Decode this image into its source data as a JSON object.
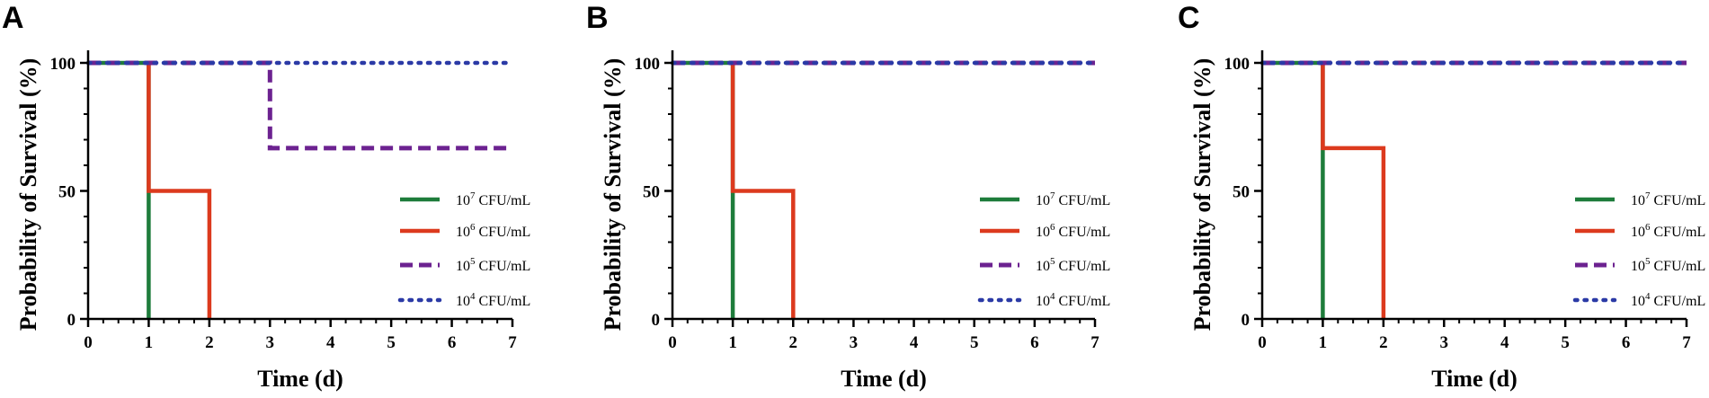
{
  "chart_data": [
    {
      "panel": "A",
      "type": "line",
      "step": true,
      "xlabel": "Time (d)",
      "ylabel": "Probability of Survival (%)",
      "xlim": [
        0,
        7
      ],
      "ylim": [
        0,
        100
      ],
      "xticks": [
        "0",
        "1",
        "2",
        "3",
        "4",
        "5",
        "6",
        "7"
      ],
      "yticks": [
        "0",
        "50",
        "100"
      ],
      "legend_position": "right",
      "series": [
        {
          "name": "10^7 CFU/mL",
          "base": "10",
          "exp": "7",
          "unit": "CFU/mL",
          "color": "#1e7c3b",
          "style": "solid",
          "x": [
            0,
            1,
            1
          ],
          "y": [
            100,
            100,
            0
          ]
        },
        {
          "name": "10^6 CFU/mL",
          "base": "10",
          "exp": "6",
          "unit": "CFU/mL",
          "color": "#dc3a1e",
          "style": "solid",
          "x": [
            1,
            1,
            2,
            2
          ],
          "y": [
            100,
            50,
            50,
            0
          ]
        },
        {
          "name": "10^5 CFU/mL",
          "base": "10",
          "exp": "5",
          "unit": "CFU/mL",
          "color": "#6c2290",
          "style": "dashed",
          "x": [
            0,
            3,
            3,
            7
          ],
          "y": [
            100,
            100,
            66.7,
            66.7
          ]
        },
        {
          "name": "10^4 CFU/mL",
          "base": "10",
          "exp": "4",
          "unit": "CFU/mL",
          "color": "#2b3aa6",
          "style": "dotted",
          "x": [
            0,
            7
          ],
          "y": [
            100,
            100
          ]
        }
      ]
    },
    {
      "panel": "B",
      "type": "line",
      "step": true,
      "xlabel": "Time (d)",
      "ylabel": "Probability of Survival (%)",
      "xlim": [
        0,
        7
      ],
      "ylim": [
        0,
        100
      ],
      "xticks": [
        "0",
        "1",
        "2",
        "3",
        "4",
        "5",
        "6",
        "7"
      ],
      "yticks": [
        "0",
        "50",
        "100"
      ],
      "legend_position": "right",
      "series": [
        {
          "name": "10^7 CFU/mL",
          "base": "10",
          "exp": "7",
          "unit": "CFU/mL",
          "color": "#1e7c3b",
          "style": "solid",
          "x": [
            0,
            1,
            1
          ],
          "y": [
            100,
            100,
            0
          ]
        },
        {
          "name": "10^6 CFU/mL",
          "base": "10",
          "exp": "6",
          "unit": "CFU/mL",
          "color": "#dc3a1e",
          "style": "solid",
          "x": [
            1,
            1,
            2,
            2
          ],
          "y": [
            100,
            50,
            50,
            0
          ]
        },
        {
          "name": "10^5 CFU/mL",
          "base": "10",
          "exp": "5",
          "unit": "CFU/mL",
          "color": "#6c2290",
          "style": "dashed",
          "x": [
            0,
            7
          ],
          "y": [
            100,
            100
          ]
        },
        {
          "name": "10^4 CFU/mL",
          "base": "10",
          "exp": "4",
          "unit": "CFU/mL",
          "color": "#2b3aa6",
          "style": "dotted",
          "x": [
            0,
            7
          ],
          "y": [
            100,
            100
          ]
        }
      ]
    },
    {
      "panel": "C",
      "type": "line",
      "step": true,
      "xlabel": "Time (d)",
      "ylabel": "Probability of Survival (%)",
      "xlim": [
        0,
        7
      ],
      "ylim": [
        0,
        100
      ],
      "xticks": [
        "0",
        "1",
        "2",
        "3",
        "4",
        "5",
        "6",
        "7"
      ],
      "yticks": [
        "0",
        "50",
        "100"
      ],
      "legend_position": "right",
      "series": [
        {
          "name": "10^7 CFU/mL",
          "base": "10",
          "exp": "7",
          "unit": "CFU/mL",
          "color": "#1e7c3b",
          "style": "solid",
          "x": [
            0,
            1,
            1
          ],
          "y": [
            100,
            100,
            0
          ]
        },
        {
          "name": "10^6 CFU/mL",
          "base": "10",
          "exp": "6",
          "unit": "CFU/mL",
          "color": "#dc3a1e",
          "style": "solid",
          "x": [
            1,
            1,
            2,
            2
          ],
          "y": [
            100,
            66.7,
            66.7,
            0
          ]
        },
        {
          "name": "10^5 CFU/mL",
          "base": "10",
          "exp": "5",
          "unit": "CFU/mL",
          "color": "#6c2290",
          "style": "dashed",
          "x": [
            0,
            7
          ],
          "y": [
            100,
            100
          ]
        },
        {
          "name": "10^4 CFU/mL",
          "base": "10",
          "exp": "4",
          "unit": "CFU/mL",
          "color": "#2b3aa6",
          "style": "dotted",
          "x": [
            0,
            7
          ],
          "y": [
            100,
            100
          ]
        }
      ]
    }
  ]
}
